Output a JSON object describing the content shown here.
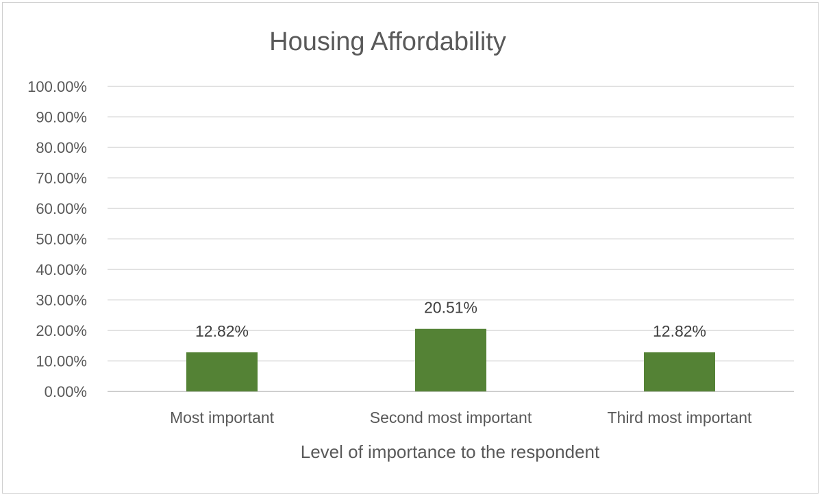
{
  "chart_data": {
    "type": "bar",
    "title": "Housing Affordability",
    "xlabel": "Level of importance to the respondent",
    "ylabel": "",
    "categories": [
      "Most important",
      "Second most important",
      "Third most important"
    ],
    "values": [
      12.82,
      20.51,
      12.82
    ],
    "data_labels": [
      "12.82%",
      "20.51%",
      "12.82%"
    ],
    "ylim": [
      0,
      100
    ],
    "y_ticks": [
      "0.00%",
      "10.00%",
      "20.00%",
      "30.00%",
      "40.00%",
      "50.00%",
      "60.00%",
      "70.00%",
      "80.00%",
      "90.00%",
      "100.00%"
    ],
    "grid": true,
    "legend": "none",
    "bar_color": "#548235"
  }
}
